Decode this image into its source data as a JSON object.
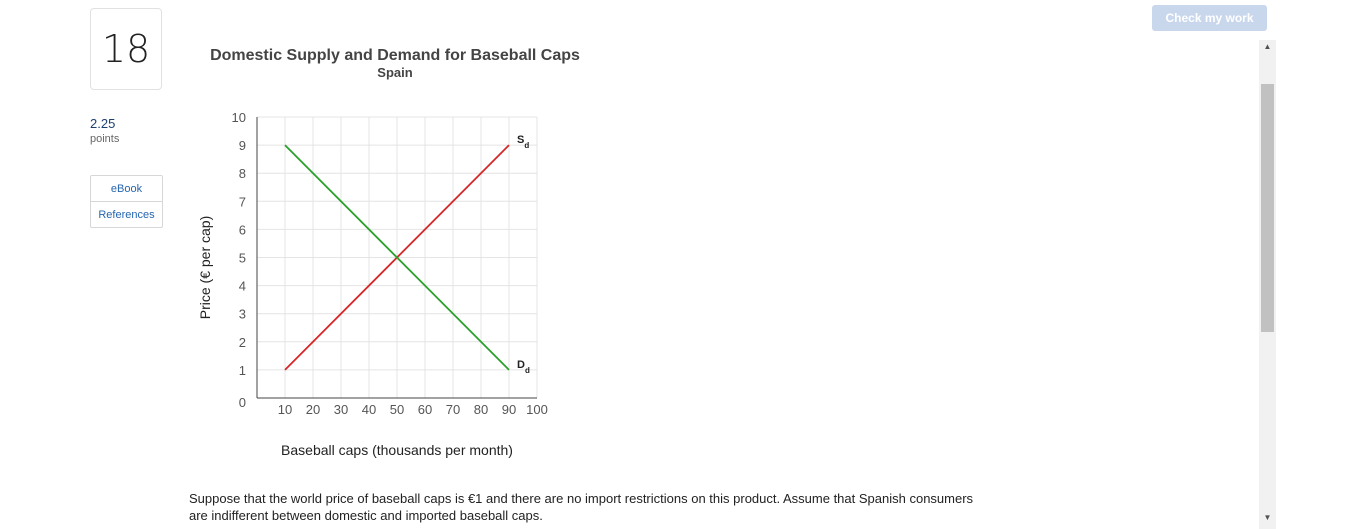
{
  "question": {
    "number": "18",
    "points_value": "2.25",
    "points_label": "points",
    "text": "Suppose that the world price of baseball caps is €1 and there are no import restrictions on this product. Assume that Spanish consumers are indifferent between domestic and imported baseball caps."
  },
  "side_buttons": {
    "ebook": "eBook",
    "references": "References"
  },
  "toolbar": {
    "check_label": "Check my work"
  },
  "scrollbar": {
    "up_icon": "▲",
    "down_icon": "▼"
  },
  "chart_data": {
    "type": "line",
    "title": "Domestic Supply and Demand for Baseball Caps",
    "subtitle": "Spain",
    "xlabel": "Baseball caps (thousands per month)",
    "ylabel": "Price (€ per cap)",
    "xlim": [
      0,
      100
    ],
    "ylim": [
      0,
      10
    ],
    "xticks": [
      10,
      20,
      30,
      40,
      50,
      60,
      70,
      80,
      90,
      100
    ],
    "yticks": [
      1,
      2,
      3,
      4,
      5,
      6,
      7,
      8,
      9,
      10
    ],
    "origin_label": "0",
    "grid": true,
    "series": [
      {
        "name": "S",
        "subscript": "d",
        "color": "#d62728",
        "x": [
          10,
          90
        ],
        "y": [
          1,
          9
        ]
      },
      {
        "name": "D",
        "subscript": "d",
        "color": "#2ca02c",
        "x": [
          10,
          90
        ],
        "y": [
          9,
          1
        ]
      }
    ]
  }
}
